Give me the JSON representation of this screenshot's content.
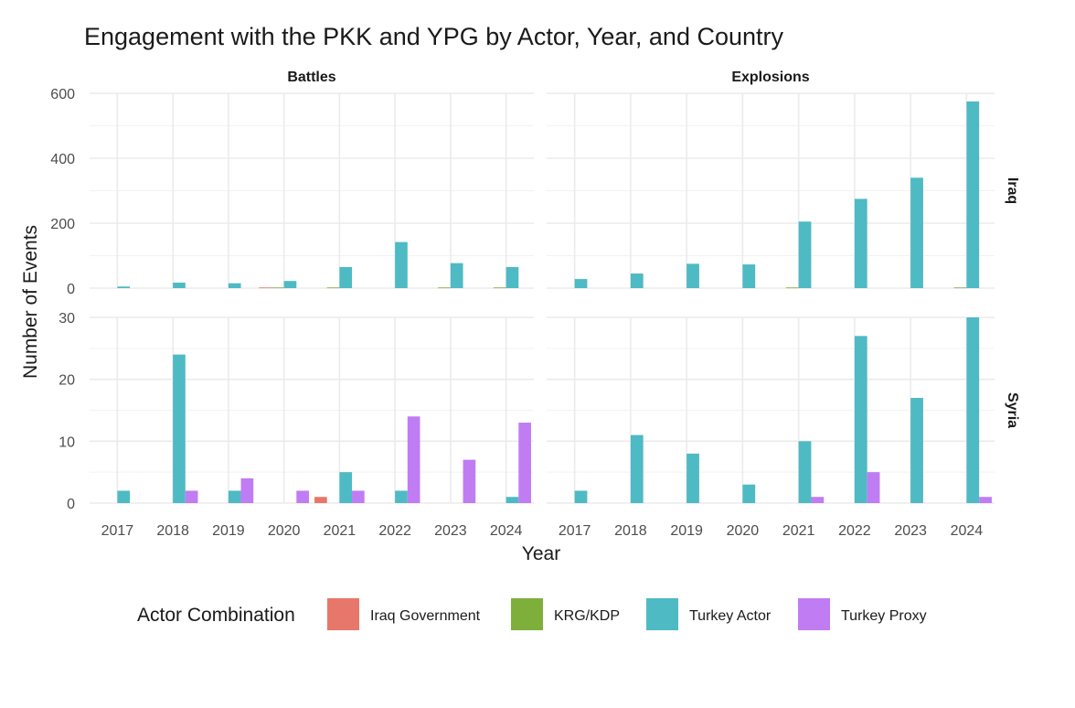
{
  "chart_data": {
    "type": "bar",
    "title": "Engagement with the PKK and YPG by Actor, Year, and Country",
    "xlabel": "Year",
    "ylabel": "Number of Events",
    "categories": [
      "2017",
      "2018",
      "2019",
      "2020",
      "2021",
      "2022",
      "2023",
      "2024"
    ],
    "facet_columns": [
      "Battles",
      "Explosions"
    ],
    "facet_rows": [
      "Iraq",
      "Syria"
    ],
    "grid": true,
    "legend": {
      "title": "Actor Combination",
      "position": "bottom",
      "entries": [
        "Iraq Government",
        "KRG/KDP",
        "Turkey Actor",
        "Turkey Proxy"
      ]
    },
    "colors": {
      "Iraq Government": "#E8776B",
      "KRG/KDP": "#7FAF3B",
      "Turkey Actor": "#4EBAC4",
      "Turkey Proxy": "#C07CF3"
    },
    "panels": [
      {
        "event_type": "Battles",
        "country": "Iraq",
        "ylim": [
          0,
          600
        ],
        "yticks": [
          0,
          200,
          400,
          600
        ],
        "series": [
          {
            "name": "Iraq Government",
            "values": [
              0,
              0,
              0,
              2,
              0,
              0,
              0,
              0
            ]
          },
          {
            "name": "KRG/KDP",
            "values": [
              0,
              0,
              0,
              2,
              2,
              0,
              2,
              2
            ]
          },
          {
            "name": "Turkey Actor",
            "values": [
              5,
              17,
              15,
              22,
              65,
              142,
              77,
              65
            ]
          },
          {
            "name": "Turkey Proxy",
            "values": [
              0,
              0,
              0,
              0,
              0,
              0,
              0,
              0
            ]
          }
        ]
      },
      {
        "event_type": "Explosions",
        "country": "Iraq",
        "ylim": [
          0,
          600
        ],
        "yticks": [
          0,
          200,
          400,
          600
        ],
        "series": [
          {
            "name": "Iraq Government",
            "values": [
              0,
              0,
              0,
              0,
              0,
              0,
              0,
              0
            ]
          },
          {
            "name": "KRG/KDP",
            "values": [
              0,
              0,
              0,
              0,
              2,
              0,
              0,
              2
            ]
          },
          {
            "name": "Turkey Actor",
            "values": [
              28,
              45,
              75,
              73,
              205,
              275,
              340,
              575
            ]
          },
          {
            "name": "Turkey Proxy",
            "values": [
              0,
              0,
              0,
              0,
              0,
              0,
              0,
              0
            ]
          }
        ]
      },
      {
        "event_type": "Battles",
        "country": "Syria",
        "ylim": [
          0,
          30
        ],
        "yticks": [
          0,
          10,
          20,
          30
        ],
        "series": [
          {
            "name": "Iraq Government",
            "values": [
              0,
              0,
              0,
              0,
              1,
              0,
              0,
              0
            ]
          },
          {
            "name": "KRG/KDP",
            "values": [
              0,
              0,
              0,
              0,
              0,
              0,
              0,
              0
            ]
          },
          {
            "name": "Turkey Actor",
            "values": [
              2,
              24,
              2,
              0,
              5,
              2,
              0,
              1
            ]
          },
          {
            "name": "Turkey Proxy",
            "values": [
              0,
              2,
              4,
              2,
              2,
              14,
              7,
              13
            ]
          }
        ]
      },
      {
        "event_type": "Explosions",
        "country": "Syria",
        "ylim": [
          0,
          30
        ],
        "yticks": [
          0,
          10,
          20,
          30
        ],
        "series": [
          {
            "name": "Iraq Government",
            "values": [
              0,
              0,
              0,
              0,
              0,
              0,
              0,
              0
            ]
          },
          {
            "name": "KRG/KDP",
            "values": [
              0,
              0,
              0,
              0,
              0,
              0,
              0,
              0
            ]
          },
          {
            "name": "Turkey Actor",
            "values": [
              2,
              11,
              8,
              3,
              10,
              27,
              17,
              30
            ]
          },
          {
            "name": "Turkey Proxy",
            "values": [
              0,
              0,
              0,
              0,
              1,
              5,
              0,
              1
            ]
          }
        ]
      }
    ]
  }
}
